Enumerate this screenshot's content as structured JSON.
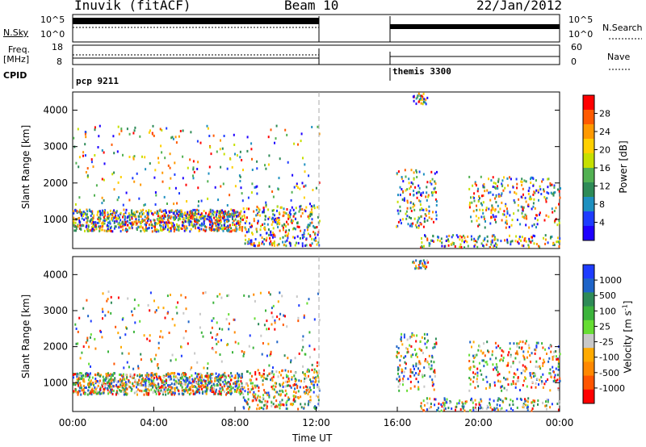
{
  "header": {
    "title": "Inuvik (fitACF)",
    "beam": "Beam 10",
    "date": "22/Jan/2012"
  },
  "strips": {
    "nsky_label": "N.Sky",
    "nsky_ticks": [
      "10^5",
      "10^0"
    ],
    "nsearch_label": "N.Search",
    "freq_label_1": "Freq.",
    "freq_label_2": "[MHz]",
    "freq_ticks": [
      "18",
      "8"
    ],
    "nave_label": "Nave",
    "nave_ticks": [
      "60",
      "0"
    ],
    "cpid_label": "CPID",
    "cpid_1": "pcp 9211",
    "cpid_2": "themis 3300"
  },
  "chart_data": [
    {
      "type": "heatmap",
      "ylabel": "Slant Range [km]",
      "ylim": [
        200,
        4500
      ],
      "yticks": [
        "4000",
        "3000",
        "2000",
        "1000"
      ],
      "colorbar_label": "Power [dB]",
      "colorbar_ticks": [
        "28",
        "24",
        "20",
        "16",
        "12",
        "8",
        "4"
      ],
      "colorbar_colors": [
        "#ff0000",
        "#ff5a00",
        "#ff9900",
        "#ffd000",
        "#c6e000",
        "#52b152",
        "#2e8b57",
        "#1e90c0",
        "#1e3cff",
        "#1e00ff"
      ]
    },
    {
      "type": "heatmap",
      "ylabel": "Slant Range [km]",
      "ylim": [
        200,
        4500
      ],
      "yticks": [
        "4000",
        "3000",
        "2000",
        "1000"
      ],
      "colorbar_label": "Velocity [m s",
      "colorbar_label_sup": "-1",
      "colorbar_ticks": [
        "1000",
        "500",
        "100",
        "25",
        "-25",
        "-100",
        "-500",
        "-1000"
      ],
      "colorbar_colors": [
        "#1e3cff",
        "#1e64c8",
        "#2e8b57",
        "#3cb43c",
        "#66dd33",
        "#c8c8c8",
        "#ffaa00",
        "#ff8800",
        "#ff5500",
        "#ff0000"
      ]
    }
  ],
  "xaxis": {
    "label": "Time UT",
    "ticks": [
      "00:00",
      "04:00",
      "08:00",
      "12:00",
      "16:00",
      "20:00",
      "00:00"
    ]
  }
}
